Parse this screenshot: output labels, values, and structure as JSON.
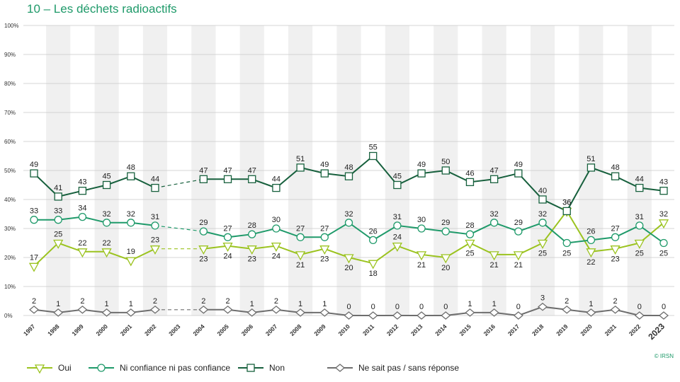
{
  "chart_data": {
    "type": "line",
    "title": "10 – Les déchets radioactifs",
    "credit": "© IRSN",
    "xlabel": "",
    "ylabel": "",
    "ylim": [
      0,
      100
    ],
    "yticks": [
      "0%",
      "10%",
      "20%",
      "30%",
      "40%",
      "50%",
      "60%",
      "70%",
      "80%",
      "90%",
      "100%"
    ],
    "categories": [
      "1997",
      "1998",
      "1999",
      "2000",
      "2001",
      "2002",
      "2003",
      "2004",
      "2005",
      "2006",
      "2007",
      "2008",
      "2009",
      "2010",
      "2011",
      "2012",
      "2013",
      "2014",
      "2015",
      "2016",
      "2017",
      "2018",
      "2019",
      "2020",
      "2021",
      "2022",
      "2023"
    ],
    "highlight_category": "2023",
    "grid": true,
    "legend_position": "bottom-left",
    "gap_after": "2002",
    "series": [
      {
        "name": "Oui",
        "marker": "triangle-down",
        "color": "#9bc31f",
        "values": [
          17,
          25,
          22,
          22,
          19,
          23,
          null,
          23,
          24,
          23,
          24,
          21,
          23,
          20,
          18,
          24,
          21,
          20,
          25,
          21,
          21,
          25,
          36,
          22,
          23,
          25,
          32
        ]
      },
      {
        "name": "Ni confiance ni pas confiance",
        "marker": "circle",
        "color": "#1f9a6a",
        "values": [
          33,
          33,
          34,
          32,
          32,
          31,
          null,
          29,
          27,
          28,
          30,
          27,
          27,
          32,
          26,
          31,
          30,
          29,
          28,
          32,
          29,
          32,
          25,
          26,
          27,
          31,
          25
        ]
      },
      {
        "name": "Non",
        "marker": "square",
        "color": "#17603d",
        "values": [
          49,
          41,
          43,
          45,
          48,
          44,
          null,
          47,
          47,
          47,
          44,
          51,
          49,
          48,
          55,
          45,
          49,
          50,
          46,
          47,
          49,
          40,
          36,
          51,
          48,
          44,
          43
        ]
      },
      {
        "name": "Ne sait pas / sans réponse",
        "marker": "diamond",
        "color": "#6e6e6e",
        "values": [
          2,
          1,
          2,
          1,
          1,
          2,
          null,
          2,
          2,
          1,
          2,
          1,
          1,
          0,
          0,
          0,
          0,
          0,
          1,
          1,
          0,
          3,
          2,
          1,
          2,
          0,
          0
        ]
      }
    ]
  }
}
